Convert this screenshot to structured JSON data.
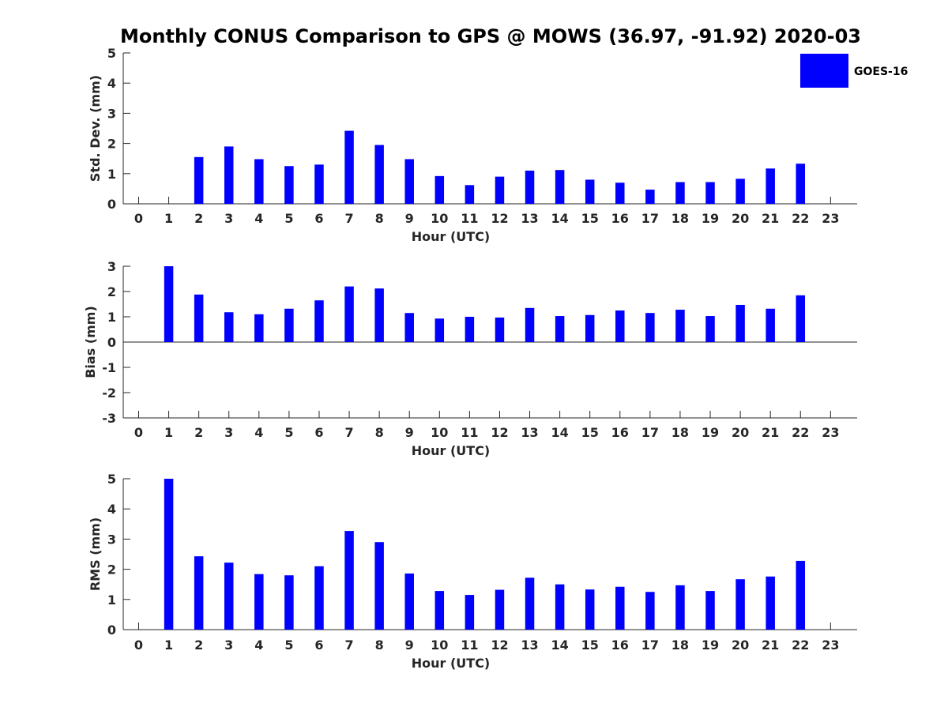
{
  "figure": {
    "title": "Monthly CONUS Comparison to GPS @ MOWS (36.97, -91.92) 2020-03",
    "legend_label": "GOES-16",
    "bar_color": "#0000ff"
  },
  "chart_data": [
    {
      "type": "bar",
      "title": "Monthly CONUS Comparison to GPS @ MOWS (36.97, -91.92) 2020-03",
      "xlabel": "Hour (UTC)",
      "ylabel": "Std. Dev. (mm)",
      "ylim": [
        0,
        5
      ],
      "yticks": [
        0,
        1,
        2,
        3,
        4,
        5
      ],
      "categories": [
        "0",
        "1",
        "2",
        "3",
        "4",
        "5",
        "6",
        "7",
        "8",
        "9",
        "10",
        "11",
        "12",
        "13",
        "14",
        "15",
        "16",
        "17",
        "18",
        "19",
        "20",
        "21",
        "22",
        "23"
      ],
      "series": [
        {
          "name": "GOES-16",
          "values": [
            null,
            null,
            1.55,
            1.9,
            1.48,
            1.25,
            1.3,
            2.42,
            1.95,
            1.48,
            0.92,
            0.62,
            0.9,
            1.1,
            1.12,
            0.8,
            0.7,
            0.47,
            0.72,
            0.72,
            0.83,
            1.17,
            1.33,
            null
          ]
        }
      ],
      "legend": "top-right",
      "grid": false
    },
    {
      "type": "bar",
      "xlabel": "Hour (UTC)",
      "ylabel": "Bias (mm)",
      "ylim": [
        -3,
        3
      ],
      "yticks": [
        -3,
        -2,
        -1,
        0,
        1,
        2,
        3
      ],
      "categories": [
        "0",
        "1",
        "2",
        "3",
        "4",
        "5",
        "6",
        "7",
        "8",
        "9",
        "10",
        "11",
        "12",
        "13",
        "14",
        "15",
        "16",
        "17",
        "18",
        "19",
        "20",
        "21",
        "22",
        "23"
      ],
      "series": [
        {
          "name": "GOES-16",
          "values": [
            null,
            3.0,
            1.88,
            1.18,
            1.1,
            1.32,
            1.65,
            2.2,
            2.12,
            1.15,
            0.93,
            1.0,
            0.97,
            1.35,
            1.03,
            1.07,
            1.25,
            1.15,
            1.28,
            1.03,
            1.47,
            1.32,
            1.85,
            null
          ]
        }
      ],
      "grid": false
    },
    {
      "type": "bar",
      "xlabel": "Hour (UTC)",
      "ylabel": "RMS (mm)",
      "ylim": [
        0,
        5
      ],
      "yticks": [
        0,
        1,
        2,
        3,
        4,
        5
      ],
      "categories": [
        "0",
        "1",
        "2",
        "3",
        "4",
        "5",
        "6",
        "7",
        "8",
        "9",
        "10",
        "11",
        "12",
        "13",
        "14",
        "15",
        "16",
        "17",
        "18",
        "19",
        "20",
        "21",
        "22",
        "23"
      ],
      "series": [
        {
          "name": "GOES-16",
          "values": [
            null,
            5.0,
            2.43,
            2.22,
            1.84,
            1.8,
            2.1,
            3.27,
            2.9,
            1.86,
            1.28,
            1.15,
            1.32,
            1.72,
            1.5,
            1.33,
            1.42,
            1.25,
            1.47,
            1.28,
            1.67,
            1.76,
            2.28,
            null
          ]
        }
      ],
      "grid": false
    }
  ]
}
